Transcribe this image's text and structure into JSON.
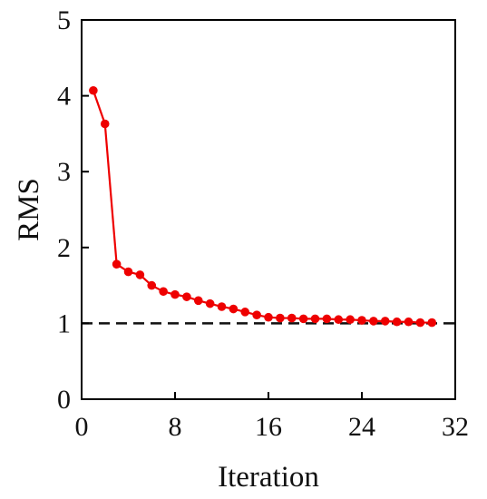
{
  "chart_data": {
    "type": "line",
    "title": "",
    "xlabel": "Iteration",
    "ylabel": "RMS",
    "xlim": [
      0,
      32
    ],
    "ylim": [
      0,
      5
    ],
    "xticks": [
      0,
      8,
      16,
      24,
      32
    ],
    "yticks": [
      0,
      1,
      2,
      3,
      4,
      5
    ],
    "xtick_labels": [
      "0",
      "8",
      "16",
      "24",
      "32"
    ],
    "ytick_labels": [
      "0",
      "1",
      "2",
      "3",
      "4",
      "5"
    ],
    "grid": false,
    "legend": "none",
    "series": [
      {
        "color": "#ee0000",
        "marker": "circle",
        "x": [
          1,
          2,
          3,
          4,
          5,
          6,
          7,
          8,
          9,
          10,
          11,
          12,
          13,
          14,
          15,
          16,
          17,
          18,
          19,
          20,
          21,
          22,
          23,
          24,
          25,
          26,
          27,
          28,
          29,
          30
        ],
        "y": [
          4.07,
          3.63,
          1.78,
          1.68,
          1.64,
          1.5,
          1.42,
          1.38,
          1.35,
          1.3,
          1.26,
          1.22,
          1.19,
          1.15,
          1.11,
          1.08,
          1.07,
          1.07,
          1.06,
          1.06,
          1.06,
          1.05,
          1.05,
          1.04,
          1.03,
          1.03,
          1.02,
          1.02,
          1.01,
          1.01
        ]
      }
    ],
    "reference_lines": [
      {
        "orientation": "horizontal",
        "y": 1,
        "style": "dashed",
        "color": "#111111"
      }
    ]
  }
}
